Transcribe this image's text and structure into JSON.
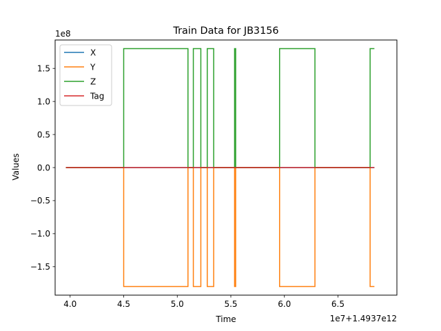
{
  "chart_data": {
    "type": "line",
    "title": "Train Data for JB3156",
    "xlabel": "Time",
    "ylabel": "Values",
    "x_offset_label": "1e7+1.4937e12",
    "y_scale_label": "1e8",
    "xlim": [
      3.86,
      7.05
    ],
    "ylim": [
      -1.93,
      1.93
    ],
    "x_ticks": [
      4.0,
      4.5,
      5.0,
      5.5,
      6.0,
      6.5
    ],
    "x_tick_labels": [
      "4.0",
      "4.5",
      "5.0",
      "5.5",
      "6.0",
      "6.5"
    ],
    "y_ticks": [
      -1.5,
      -1.0,
      -0.5,
      0.0,
      0.5,
      1.0,
      1.5
    ],
    "y_tick_labels": [
      "−1.5",
      "−1.0",
      "−0.5",
      "0.0",
      "0.5",
      "1.0",
      "1.5"
    ],
    "grid": false,
    "legend_position": "upper-left",
    "series": [
      {
        "name": "X",
        "color": "#1f77b4",
        "x": [
          3.96,
          6.84
        ],
        "y": [
          0,
          0
        ]
      },
      {
        "name": "Y",
        "color": "#ff7f0e",
        "x": [
          3.96,
          4.5,
          4.5,
          5.1,
          5.1,
          5.15,
          5.15,
          5.22,
          5.22,
          5.28,
          5.28,
          5.34,
          5.34,
          5.535,
          5.535,
          5.545,
          5.545,
          5.955,
          5.955,
          6.285,
          6.285,
          6.8,
          6.8,
          6.84
        ],
        "y": [
          0,
          0,
          -1.8,
          -1.8,
          0,
          0,
          -1.8,
          -1.8,
          0,
          0,
          -1.8,
          -1.8,
          0,
          0,
          -1.8,
          -1.8,
          0,
          0,
          -1.8,
          -1.8,
          0,
          0,
          -1.8,
          -1.8
        ]
      },
      {
        "name": "Z",
        "color": "#2ca02c",
        "x": [
          3.96,
          4.5,
          4.5,
          5.1,
          5.1,
          5.15,
          5.15,
          5.22,
          5.22,
          5.28,
          5.28,
          5.34,
          5.34,
          5.535,
          5.535,
          5.545,
          5.545,
          5.955,
          5.955,
          6.285,
          6.285,
          6.8,
          6.8,
          6.84
        ],
        "y": [
          0,
          0,
          1.8,
          1.8,
          0,
          0,
          1.8,
          1.8,
          0,
          0,
          1.8,
          1.8,
          0,
          0,
          1.8,
          1.8,
          0,
          0,
          1.8,
          1.8,
          0,
          0,
          1.8,
          1.8
        ]
      },
      {
        "name": "Tag",
        "color": "#d62728",
        "x": [
          3.96,
          6.84
        ],
        "y": [
          0,
          0
        ]
      }
    ]
  }
}
